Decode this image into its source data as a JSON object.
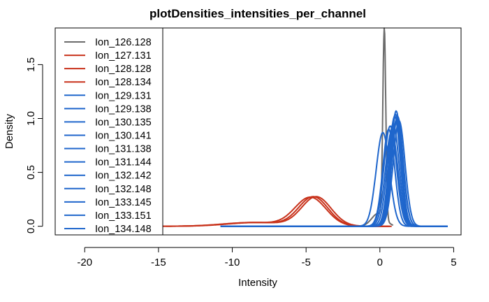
{
  "chart_data": {
    "type": "line",
    "title": "plotDensities_intensities_per_channel",
    "xlabel": "Intensity",
    "ylabel": "Density",
    "xlim": [
      -22,
      5.5
    ],
    "ylim": [
      -0.08,
      1.84
    ],
    "x_ticks": [
      -20,
      -15,
      -10,
      -5,
      0,
      5
    ],
    "x_tick_labels": [
      "-20",
      "-15",
      "-10",
      "-5",
      "0",
      "5"
    ],
    "y_ticks": [
      0.0,
      0.5,
      1.0,
      1.5
    ],
    "y_tick_labels": [
      "0.0",
      "0.5",
      "1.0",
      "1.5"
    ],
    "grid": false,
    "legend_position": "top-left",
    "colors": {
      "gray": "#6b6b6b",
      "red": "#c8321b",
      "blue": "#1f66cc"
    },
    "series": [
      {
        "name": "Ion_126.128",
        "color": "#6b6b6b",
        "x_range": [
          -10,
          0.9
        ],
        "components": [
          [
            0.3,
            0.1,
            1.76
          ],
          [
            -0.1,
            0.45,
            0.12
          ]
        ]
      },
      {
        "name": "Ion_127.131",
        "color": "#c8321b",
        "x_range": [
          -14.5,
          0.7
        ],
        "components": [
          [
            -4.5,
            1.0,
            0.27
          ],
          [
            -8.5,
            2.0,
            0.035
          ]
        ]
      },
      {
        "name": "Ion_128.128",
        "color": "#c8321b",
        "x_range": [
          -15,
          0.8
        ],
        "components": [
          [
            -4.7,
            1.05,
            0.265
          ],
          [
            -8.6,
            2.0,
            0.035
          ]
        ]
      },
      {
        "name": "Ion_128.134",
        "color": "#c8321b",
        "x_range": [
          -14.8,
          0.6
        ],
        "components": [
          [
            -4.3,
            1.0,
            0.27
          ],
          [
            -8.3,
            2.0,
            0.035
          ]
        ]
      },
      {
        "name": "Ion_129.131",
        "color": "#1f66cc",
        "x_range": [
          -10.8,
          4.6
        ],
        "components": [
          [
            0.8,
            0.42,
            0.88
          ]
        ]
      },
      {
        "name": "Ion_129.138",
        "color": "#1f66cc",
        "x_range": [
          -10.8,
          4.6
        ],
        "components": [
          [
            1.0,
            0.38,
            1.02
          ]
        ]
      },
      {
        "name": "Ion_130.135",
        "color": "#1f66cc",
        "x_range": [
          -10.8,
          4.6
        ],
        "components": [
          [
            0.6,
            0.4,
            0.9
          ]
        ]
      },
      {
        "name": "Ion_130.141",
        "color": "#1f66cc",
        "x_range": [
          -10.8,
          4.6
        ],
        "components": [
          [
            1.2,
            0.38,
            1.02
          ]
        ]
      },
      {
        "name": "Ion_131.138",
        "color": "#1f66cc",
        "x_range": [
          -10.8,
          4.6
        ],
        "components": [
          [
            1.1,
            0.36,
            1.07
          ]
        ]
      },
      {
        "name": "Ion_131.144",
        "color": "#1f66cc",
        "x_range": [
          -10.8,
          4.6
        ],
        "components": [
          [
            0.9,
            0.4,
            0.95
          ]
        ]
      },
      {
        "name": "Ion_132.142",
        "color": "#1f66cc",
        "x_range": [
          -10.8,
          4.6
        ],
        "components": [
          [
            1.3,
            0.4,
            0.98
          ]
        ]
      },
      {
        "name": "Ion_132.148",
        "color": "#1f66cc",
        "x_range": [
          -10.8,
          4.6
        ],
        "components": [
          [
            0.2,
            0.45,
            0.87
          ]
        ]
      },
      {
        "name": "Ion_133.145",
        "color": "#1f66cc",
        "x_range": [
          -10.8,
          4.6
        ],
        "components": [
          [
            1.05,
            0.38,
            1.04
          ]
        ]
      },
      {
        "name": "Ion_133.151",
        "color": "#1f66cc",
        "x_range": [
          -10.8,
          4.6
        ],
        "components": [
          [
            0.7,
            0.42,
            0.93
          ]
        ]
      },
      {
        "name": "Ion_134.148",
        "color": "#1f66cc",
        "x_range": [
          -10.8,
          4.6
        ],
        "components": [
          [
            1.15,
            0.4,
            1.0
          ]
        ]
      }
    ]
  }
}
